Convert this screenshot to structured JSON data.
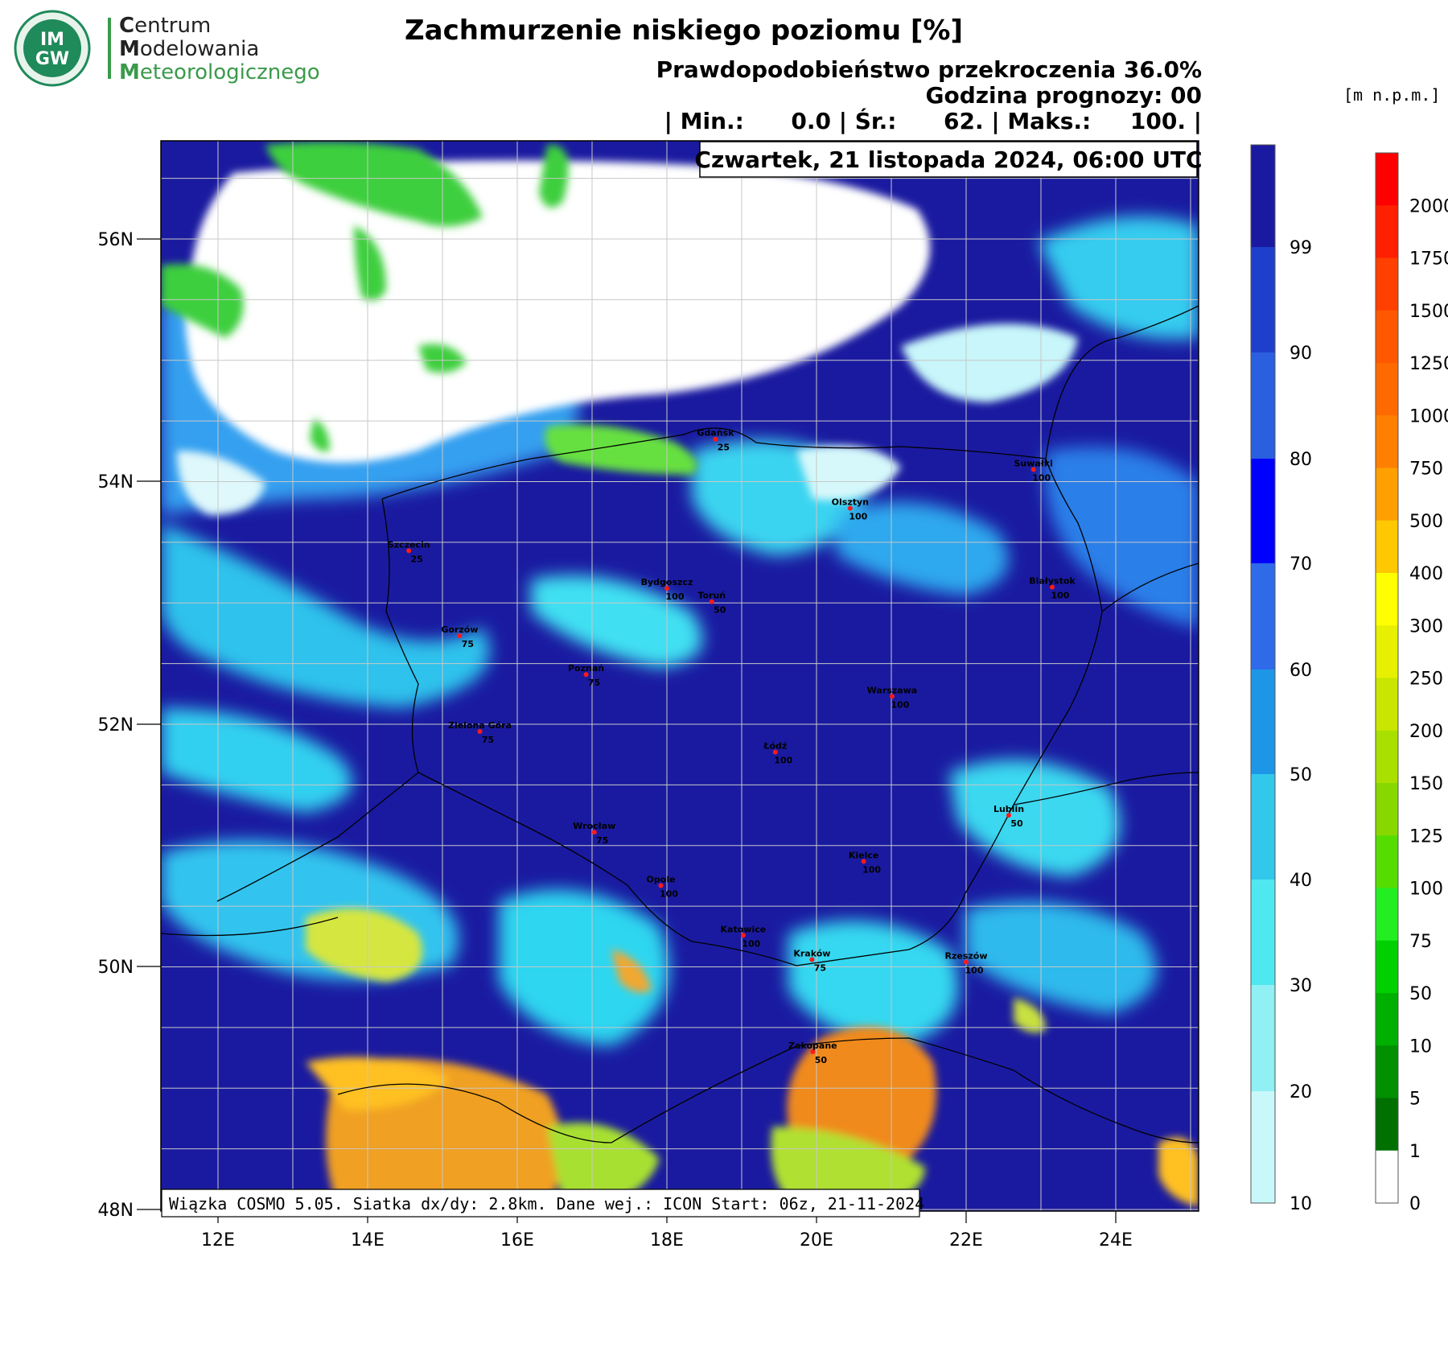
{
  "logo": {
    "badge_text_top": "IM",
    "badge_text_bottom": "GW",
    "line1_initial": "C",
    "line1_rest": "entrum",
    "line2_initial": "M",
    "line2_rest": "odelowania",
    "line3_initial": "M",
    "line3_rest": "eteorologicznego",
    "colors": {
      "dark": "#222222",
      "green": "#3a9a4a",
      "badge": "#1f8a5a"
    }
  },
  "title": "Zachmurzenie niskiego poziomu [%]",
  "header": {
    "probability": "Prawdopodobieństwo przekroczenia 36.0%",
    "forecast_hour": "Godzina prognozy: 00",
    "stats": "| Min.:      0.0 | Śr.:      62. | Maks.:     100. |"
  },
  "date_label": "Czwartek, 21 listopada 2024, 06:00 UTC",
  "footer_note": "Wiązka COSMO 5.05. Siatka dx/dy: 2.8km. Dane wej.: ICON Start: 06z, 21-11-2024",
  "units_label": "[m n.p.m.]",
  "map": {
    "lat_labels": [
      "56N",
      "54N",
      "52N",
      "50N",
      "48N"
    ],
    "lon_labels": [
      "12E",
      "14E",
      "16E",
      "18E",
      "20E",
      "22E",
      "24E"
    ],
    "lat_range": [
      48,
      56.8
    ],
    "lon_range": [
      11.25,
      25.1
    ],
    "cities": [
      {
        "name": "Gdańsk",
        "value": "25",
        "lon": 18.65,
        "lat": 54.35
      },
      {
        "name": "Suwałki",
        "value": "100",
        "lon": 22.9,
        "lat": 54.1
      },
      {
        "name": "Olsztyn",
        "value": "100",
        "lon": 20.45,
        "lat": 53.78
      },
      {
        "name": "Szczecin",
        "value": "25",
        "lon": 14.55,
        "lat": 53.43
      },
      {
        "name": "Bydgoszcz",
        "value": "100",
        "lon": 18.0,
        "lat": 53.12
      },
      {
        "name": "Toruń",
        "value": "50",
        "lon": 18.6,
        "lat": 53.01
      },
      {
        "name": "Białystok",
        "value": "100",
        "lon": 23.15,
        "lat": 53.13
      },
      {
        "name": "Gorzów",
        "value": "75",
        "lon": 15.23,
        "lat": 52.73
      },
      {
        "name": "Poznań",
        "value": "75",
        "lon": 16.92,
        "lat": 52.41
      },
      {
        "name": "Warszawa",
        "value": "100",
        "lon": 21.01,
        "lat": 52.23
      },
      {
        "name": "Zielona Góra",
        "value": "75",
        "lon": 15.5,
        "lat": 51.94
      },
      {
        "name": "Łódź",
        "value": "100",
        "lon": 19.45,
        "lat": 51.77
      },
      {
        "name": "Lublin",
        "value": "50",
        "lon": 22.57,
        "lat": 51.25
      },
      {
        "name": "Wrocław",
        "value": "75",
        "lon": 17.03,
        "lat": 51.11
      },
      {
        "name": "Kielce",
        "value": "100",
        "lon": 20.63,
        "lat": 50.87
      },
      {
        "name": "Opole",
        "value": "100",
        "lon": 17.92,
        "lat": 50.67
      },
      {
        "name": "Katowice",
        "value": "100",
        "lon": 19.02,
        "lat": 50.26
      },
      {
        "name": "Kraków",
        "value": "75",
        "lon": 19.94,
        "lat": 50.06
      },
      {
        "name": "Rzeszów",
        "value": "100",
        "lon": 22.0,
        "lat": 50.04
      },
      {
        "name": "Zakopane",
        "value": "50",
        "lon": 19.95,
        "lat": 49.3
      }
    ]
  },
  "colorbar_cloud": {
    "labels": [
      "99",
      "90",
      "80",
      "70",
      "60",
      "50",
      "40",
      "30",
      "20",
      "10"
    ],
    "colors": [
      "#1a1aa0",
      "#1e3fcc",
      "#2a5fe0",
      "#0000ff",
      "#2f6ae8",
      "#1e96e6",
      "#32c8ec",
      "#50e8f0",
      "#90f0f4",
      "#c8f8fa",
      "#e8fcfd"
    ]
  },
  "colorbar_height": {
    "labels": [
      "2000",
      "1750",
      "1500",
      "1250",
      "1000",
      "750",
      "500",
      "400",
      "300",
      "250",
      "200",
      "150",
      "125",
      "100",
      "75",
      "50",
      "10",
      "5",
      "1",
      "0"
    ],
    "colors": [
      "#ff0000",
      "#ff2000",
      "#ff4000",
      "#ff5800",
      "#ff6a00",
      "#ff8000",
      "#ffa000",
      "#ffc800",
      "#ffff00",
      "#e6f000",
      "#c8e600",
      "#aae000",
      "#88d800",
      "#55dd00",
      "#22ee22",
      "#00d000",
      "#00b000",
      "#009000",
      "#007000",
      "#ffffff"
    ]
  }
}
